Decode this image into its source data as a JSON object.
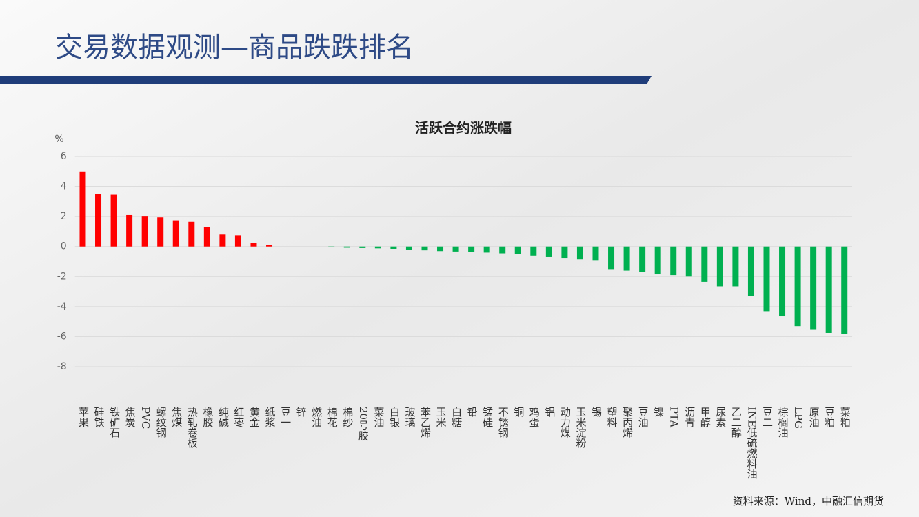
{
  "header": {
    "title": "交易数据观测—商品跌跌排名"
  },
  "footer": {
    "source": "资料来源：Wind，中融汇信期货"
  },
  "chart_data": {
    "type": "bar",
    "title": "活跃合约涨跌幅",
    "y_label": "%",
    "categories": [
      "苹果",
      "硅铁",
      "铁矿石",
      "焦炭",
      "PVC",
      "螺纹钢",
      "焦煤",
      "热轧卷板",
      "橡胶",
      "纯碱",
      "红枣",
      "黄金",
      "纸浆",
      "豆一",
      "锌",
      "燃油",
      "棉花",
      "棉纱",
      "20号胶",
      "菜油",
      "白银",
      "玻璃",
      "苯乙烯",
      "玉米",
      "白糖",
      "铅",
      "锰硅",
      "不锈钢",
      "铜",
      "鸡蛋",
      "铝",
      "动力煤",
      "玉米淀粉",
      "锡",
      "塑料",
      "聚丙烯",
      "豆油",
      "镍",
      "PTA",
      "沥青",
      "甲醇",
      "尿素",
      "乙二醇",
      "INE低硫燃料油",
      "豆二",
      "棕榈油",
      "LPG",
      "原油",
      "豆粕",
      "菜粕"
    ],
    "values": [
      5.0,
      3.5,
      3.45,
      2.1,
      2.0,
      1.95,
      1.75,
      1.65,
      1.3,
      0.8,
      0.75,
      0.25,
      0.1,
      0,
      0,
      0,
      -0.05,
      -0.08,
      -0.1,
      -0.12,
      -0.15,
      -0.2,
      -0.25,
      -0.3,
      -0.33,
      -0.35,
      -0.4,
      -0.45,
      -0.5,
      -0.6,
      -0.7,
      -0.75,
      -0.85,
      -0.9,
      -1.5,
      -1.6,
      -1.7,
      -1.85,
      -1.9,
      -2.0,
      -2.35,
      -2.65,
      -2.65,
      -3.3,
      -4.3,
      -4.65,
      -5.3,
      -5.5,
      -5.75,
      -5.8
    ],
    "positive_color": "#ff0000",
    "negative_color": "#00b050",
    "ylim": [
      -8,
      6
    ],
    "yticks": [
      -8,
      -6,
      -4,
      -2,
      0,
      2,
      4,
      6
    ],
    "grid": true
  }
}
